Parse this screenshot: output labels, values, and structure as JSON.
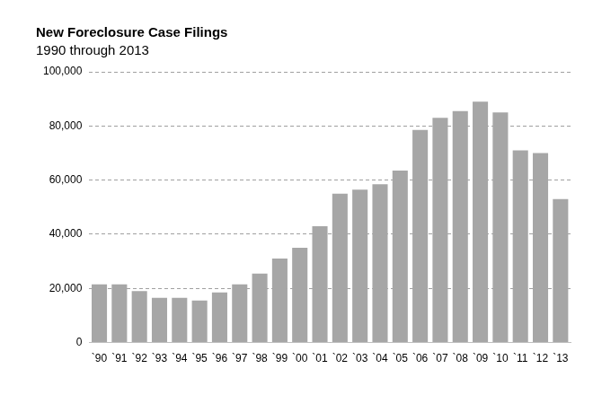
{
  "chart_data": {
    "type": "bar",
    "title": "New Foreclosure Case Filings",
    "subtitle": "1990 through 2013",
    "categories": [
      "`90",
      "`91",
      "`92",
      "`93",
      "`94",
      "`95",
      "`96",
      "`97",
      "`98",
      "`99",
      "`00",
      "`01",
      "`02",
      "`03",
      "`04",
      "`05",
      "`06",
      "`07",
      "`08",
      "`09",
      "`10",
      "`11",
      "`12",
      "`13"
    ],
    "values": [
      21500,
      21500,
      19000,
      16500,
      16500,
      15500,
      18500,
      21500,
      25500,
      31000,
      35000,
      43000,
      55000,
      56500,
      58500,
      63500,
      78500,
      83000,
      85500,
      89000,
      85000,
      71000,
      70000,
      53000
    ],
    "color": "#a6a6a6",
    "ylim": [
      0,
      100000
    ],
    "yticks": [
      0,
      {
        "value": 20000,
        "label": "20,000"
      },
      {
        "value": 40000,
        "label": "40,000"
      },
      {
        "value": 60000,
        "label": "60,000"
      },
      {
        "value": 80000,
        "label": "80,000"
      },
      {
        "value": 100000,
        "label": "100,000"
      }
    ],
    "grid": true
  }
}
